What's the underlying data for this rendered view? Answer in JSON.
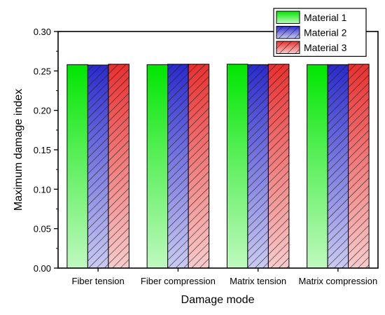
{
  "chart_data": {
    "type": "bar",
    "title": "",
    "xlabel": "Damage mode",
    "ylabel": "Maximum damage index",
    "categories": [
      "Fiber tension",
      "Fiber compression",
      "Matrix tension",
      "Matrix compression"
    ],
    "series": [
      {
        "name": "Material 1",
        "values": [
          0.258,
          0.258,
          0.2585,
          0.258
        ],
        "color": "#00e600",
        "fill_style": "vertical-gradient"
      },
      {
        "name": "Material 2",
        "values": [
          0.2575,
          0.2585,
          0.258,
          0.258
        ],
        "color": "#2a2acc",
        "fill_style": "gradient-with-diagonal-hatch"
      },
      {
        "name": "Material 3",
        "values": [
          0.2585,
          0.2585,
          0.2585,
          0.2585
        ],
        "color": "#e83030",
        "fill_style": "gradient-with-diagonal-hatch"
      }
    ],
    "ylim": [
      0,
      0.3
    ],
    "yticks": [
      "0.00",
      "0.05",
      "0.10",
      "0.15",
      "0.20",
      "0.25",
      "0.30"
    ],
    "grid": false,
    "legend_position": "top-right"
  }
}
